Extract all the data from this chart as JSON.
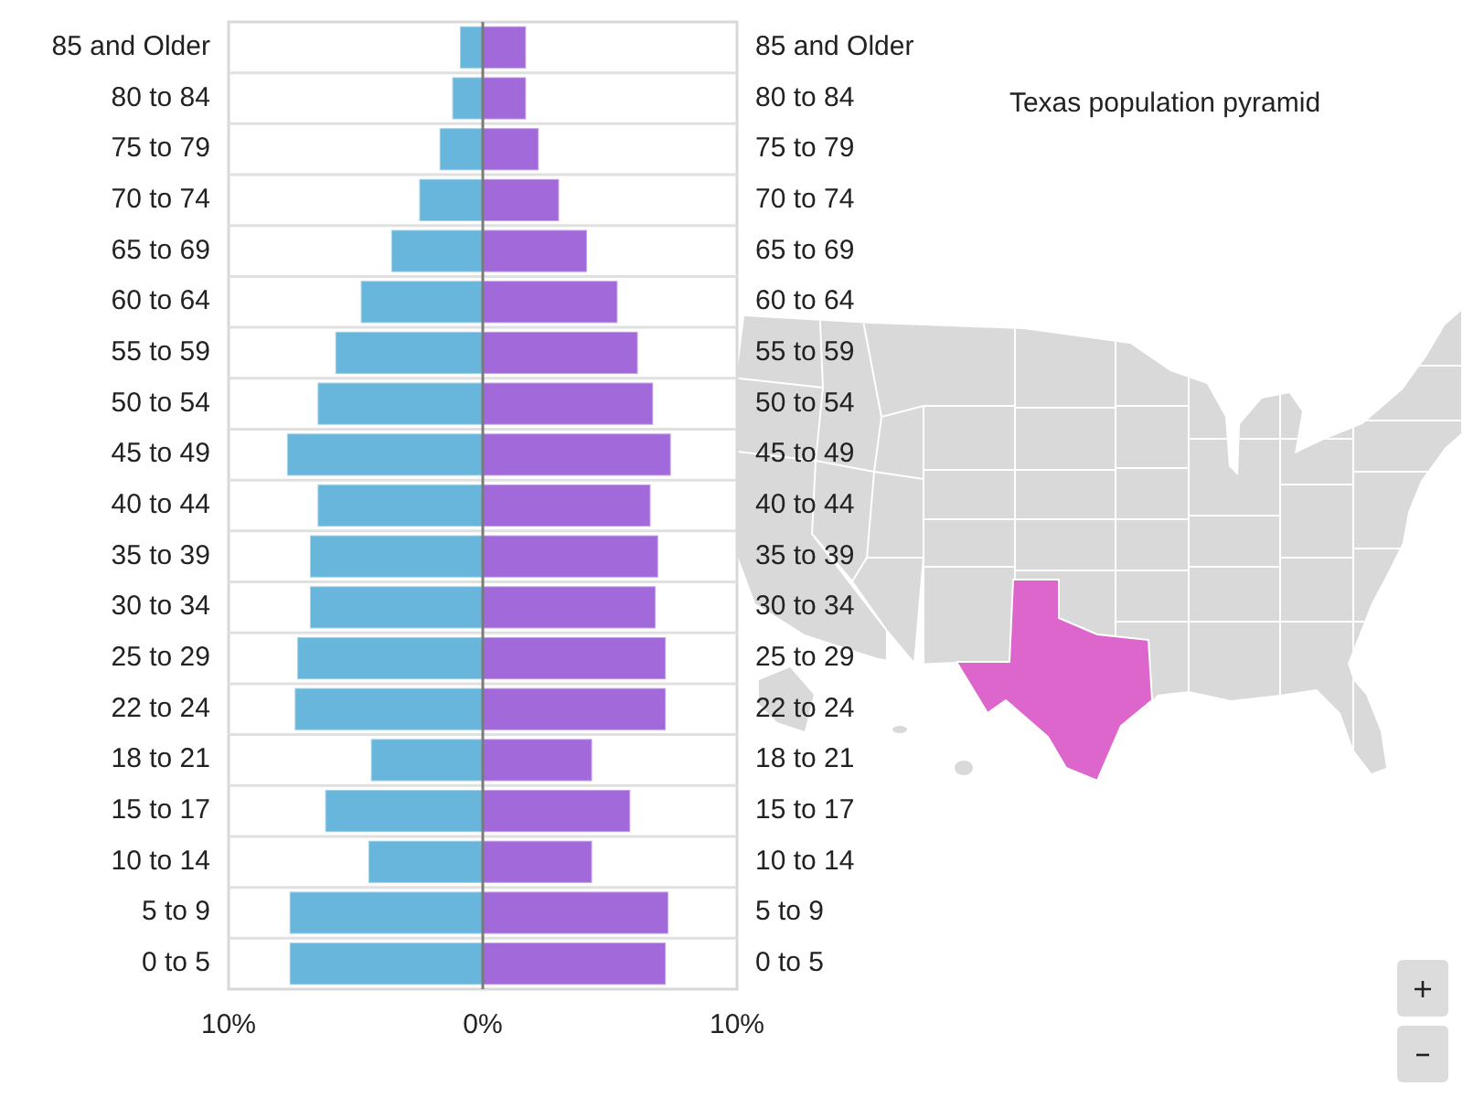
{
  "chart_data": {
    "type": "bar",
    "title": "Texas population pyramid",
    "orientation": "horizontal",
    "stacked": true,
    "grid": "y",
    "categories": [
      "85 and Older",
      "80 to 84",
      "75 to 79",
      "70 to 74",
      "65 to 69",
      "60 to 64",
      "55 to 59",
      "50 to 54",
      "45 to 49",
      "40 to 44",
      "35 to 39",
      "30 to 34",
      "25 to 29",
      "22 to 24",
      "18 to 21",
      "15 to 17",
      "10 to 14",
      "5 to 9",
      "0 to 5"
    ],
    "series": [
      {
        "color": "#68b6dc",
        "values": [
          -0.9,
          -1.2,
          -1.7,
          -2.5,
          -3.6,
          -4.8,
          -5.8,
          -6.5,
          -7.7,
          -6.5,
          -6.8,
          -6.8,
          -7.3,
          -7.4,
          -4.4,
          -6.2,
          -4.5,
          -7.6,
          -7.6
        ]
      },
      {
        "color": "#a269da",
        "values": [
          1.7,
          1.7,
          2.2,
          3.0,
          4.1,
          5.3,
          6.1,
          6.7,
          7.4,
          6.6,
          6.9,
          6.8,
          7.2,
          7.2,
          4.3,
          5.8,
          4.3,
          7.3,
          7.2
        ]
      }
    ],
    "xlim": [
      -10,
      10
    ],
    "xticks": [
      {
        "value": -10,
        "label": "10%"
      },
      {
        "value": 0,
        "label": "0%"
      },
      {
        "value": 10,
        "label": "10%"
      }
    ]
  }
}
